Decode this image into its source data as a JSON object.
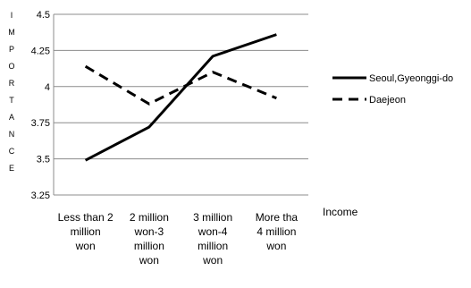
{
  "chart_data": {
    "type": "line",
    "categories": [
      [
        "Less than 2",
        "million",
        "won"
      ],
      [
        "2 million",
        "won-3",
        "million",
        "won"
      ],
      [
        "3 million",
        "won-4",
        "million",
        "won"
      ],
      [
        "More tha",
        "4 million",
        "won"
      ]
    ],
    "series": [
      {
        "name": "Seoul,Gyeonggi-do",
        "values": [
          3.49,
          3.72,
          4.21,
          4.36
        ],
        "style": "solid",
        "color": "#000000"
      },
      {
        "name": "Daejeon",
        "values": [
          4.14,
          3.88,
          4.1,
          3.92
        ],
        "style": "dashed",
        "color": "#000000"
      }
    ],
    "ylabel": "IMPORTANCE",
    "xlabel": "Income",
    "ylim": [
      3.25,
      4.5
    ],
    "yticks": [
      "3.25",
      "3.5",
      "3.75",
      "4",
      "4.25",
      "4.5"
    ],
    "grid": true,
    "legend": "right"
  }
}
